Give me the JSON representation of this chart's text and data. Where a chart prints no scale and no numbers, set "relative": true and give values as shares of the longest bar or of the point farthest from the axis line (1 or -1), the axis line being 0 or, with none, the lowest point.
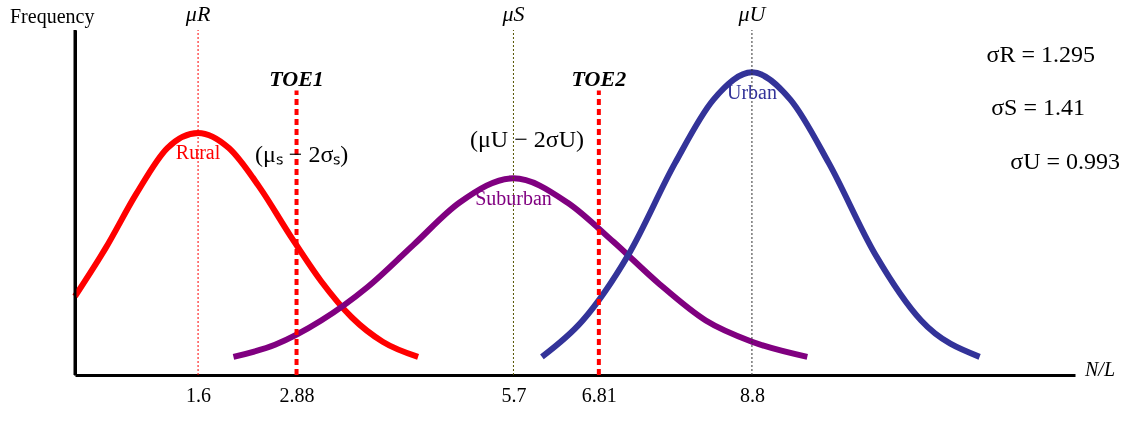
{
  "chart_data": {
    "type": "line",
    "relative": true,
    "ylabel": "Frequency",
    "xlabel": "N/L",
    "xlim": [
      0,
      13
    ],
    "xticks": [
      1.6,
      2.88,
      5.7,
      6.81,
      8.8
    ],
    "series": [
      {
        "name": "Rural",
        "color": "#ff0000",
        "x": [
          0,
          0.4,
          0.8,
          1.2,
          1.6,
          2.0,
          2.4,
          2.8,
          3.2,
          3.6,
          4.0,
          4.46
        ],
        "values": [
          0.26,
          0.42,
          0.6,
          0.75,
          0.8,
          0.75,
          0.62,
          0.46,
          0.31,
          0.19,
          0.11,
          0.06
        ]
      },
      {
        "name": "Suburban",
        "color": "#800080",
        "x": [
          2.06,
          2.6,
          3.2,
          3.8,
          4.4,
          5.0,
          5.7,
          6.4,
          7.0,
          7.6,
          8.2,
          8.8,
          9.52
        ],
        "values": [
          0.06,
          0.1,
          0.18,
          0.29,
          0.43,
          0.57,
          0.65,
          0.57,
          0.44,
          0.3,
          0.18,
          0.11,
          0.06
        ]
      },
      {
        "name": "Urban",
        "color": "#333399",
        "x": [
          6.07,
          6.6,
          7.2,
          7.8,
          8.3,
          8.8,
          9.3,
          9.8,
          10.4,
          11.0,
          11.76
        ],
        "values": [
          0.06,
          0.18,
          0.4,
          0.7,
          0.91,
          1.0,
          0.91,
          0.7,
          0.4,
          0.18,
          0.06
        ]
      }
    ],
    "ref_lines": [
      {
        "axis": "x",
        "value": 1.6,
        "label": "μR",
        "color": "#ff0000",
        "line_style": "dotted"
      },
      {
        "axis": "x",
        "value": 5.7,
        "label": "μS",
        "color": "#555500",
        "line_style": "dotted"
      },
      {
        "axis": "x",
        "value": 8.8,
        "label": "μU",
        "color": "#333333",
        "line_style": "dotted"
      },
      {
        "axis": "x",
        "value": 2.88,
        "label": "TOE1",
        "color": "#ff0000",
        "line_style": "dashed"
      },
      {
        "axis": "x",
        "value": 6.81,
        "label": "TOE2",
        "color": "#ff0000",
        "line_style": "dashed"
      }
    ],
    "annotations": [
      "(μₛ − 2σₛ)",
      "(μU − 2σU)",
      "σR = 1.295",
      "σS = 1.41",
      "σU = 0.993"
    ]
  }
}
